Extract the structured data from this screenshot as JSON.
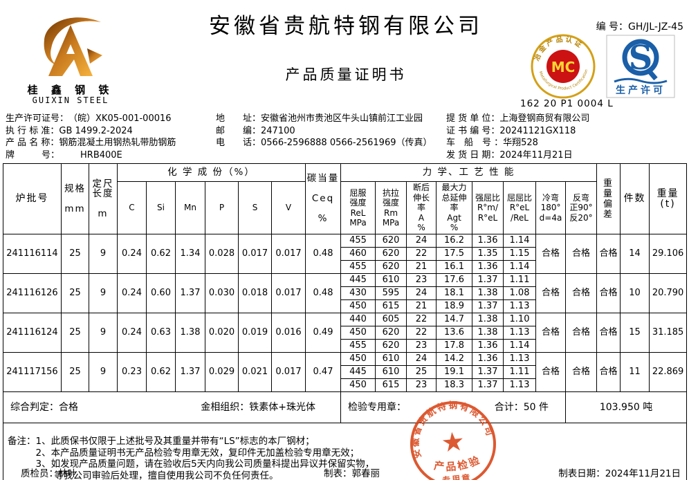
{
  "header": {
    "company": "安徽省贵航特钢有限公司",
    "doc_title": "产品质量证明书",
    "cert_no_label": "编 号：",
    "cert_no": "GH/JL-JZ-45",
    "mc_code": "162 20 P1 0004 L"
  },
  "logo": {
    "cn": "桂 鑫 钢 铁",
    "en": "GUIXIN STEEL"
  },
  "badges": {
    "mc_text": "MC",
    "mc_ring_top": "冶金产品认证",
    "mc_ring_bottom": "Metallurgical Product Certification",
    "qs_label": "生产许可"
  },
  "info": {
    "col1": [
      {
        "label": "生产许可证号：",
        "value": "（皖）XK05-001-00016"
      },
      {
        "label": "执 行 标 准：",
        "value": "GB 1499.2-2024"
      },
      {
        "label": "产 品 名 称：",
        "value": "钢筋混凝土用钢热轧带肋钢筋"
      },
      {
        "label": "牌　　　号：",
        "value": "HRB400E"
      }
    ],
    "col2": [
      {
        "label": "地　　址：",
        "value": "安徽省池州市贵池区牛头山镇前江工业园"
      },
      {
        "label": "邮　　编：",
        "value": "247100"
      },
      {
        "label": "电　　话：",
        "value": "0566-2596888  0566-2561969（传真）"
      }
    ],
    "col3": [
      {
        "label": "提 货 单 位：",
        "value": "上海登钢商贸有限公司"
      },
      {
        "label": "证 书 编 号：",
        "value": "20241121GX118"
      },
      {
        "label": "车　船　号 ：",
        "value": "华翔528"
      },
      {
        "label": "发 货 日 期：",
        "value": "2024年11月21日"
      }
    ]
  },
  "table": {
    "header": {
      "batch": "炉批号",
      "spec": "规格\n\nmm",
      "length": "定尺\n长度\n\nm",
      "chem_group": "化 学 成 份（%）",
      "chem_cols": [
        "C",
        "Si",
        "Mn",
        "P",
        "S",
        "V"
      ],
      "ceq": "碳当量\n\nCeq\n\n%",
      "mech_group": "力 学、工 艺 性 能",
      "mech_cols": [
        "屈服\n强度\nReL\nMPa",
        "抗拉\n强度\nRm\nMPa",
        "断后\n伸长\n率\nA\n%",
        "最大力\n总延伸\n率\nAgt\n%",
        "强屈比\nR°m/\nR°eL",
        "屈屈比\nR°eL\n/ReL",
        "冷弯\n180°\nd=4a",
        "反弯\n正90°\n反20°"
      ],
      "weight_dev": "重\n量\n偏\n差",
      "pieces": "件数",
      "weight": "重量\n(t)"
    },
    "batches": [
      {
        "batch_no": "241116114",
        "spec": "25",
        "length": "9",
        "chem": [
          "0.24",
          "0.62",
          "1.34",
          "0.028",
          "0.017",
          "0.017"
        ],
        "ceq": "0.48",
        "mech": [
          [
            "455",
            "620",
            "24",
            "16.2",
            "1.36",
            "1.14"
          ],
          [
            "460",
            "620",
            "22",
            "17.5",
            "1.35",
            "1.15"
          ],
          [
            "455",
            "620",
            "21",
            "16.1",
            "1.36",
            "1.14"
          ]
        ],
        "cold_bend": "合格",
        "reverse_bend": "合格",
        "weight_dev": "合格",
        "pieces": "14",
        "weight": "29.106"
      },
      {
        "batch_no": "241116126",
        "spec": "25",
        "length": "9",
        "chem": [
          "0.24",
          "0.60",
          "1.37",
          "0.030",
          "0.018",
          "0.017"
        ],
        "ceq": "0.48",
        "mech": [
          [
            "445",
            "610",
            "23",
            "17.6",
            "1.37",
            "1.11"
          ],
          [
            "430",
            "595",
            "24",
            "18.1",
            "1.38",
            "1.08"
          ],
          [
            "450",
            "615",
            "21",
            "18.9",
            "1.37",
            "1.13"
          ]
        ],
        "cold_bend": "合格",
        "reverse_bend": "合格",
        "weight_dev": "合格",
        "pieces": "10",
        "weight": "20.790"
      },
      {
        "batch_no": "241116124",
        "spec": "25",
        "length": "9",
        "chem": [
          "0.24",
          "0.63",
          "1.38",
          "0.020",
          "0.019",
          "0.016"
        ],
        "ceq": "0.49",
        "mech": [
          [
            "440",
            "605",
            "22",
            "14.7",
            "1.38",
            "1.10"
          ],
          [
            "450",
            "620",
            "22",
            "13.6",
            "1.38",
            "1.13"
          ],
          [
            "455",
            "620",
            "23",
            "17.8",
            "1.36",
            "1.14"
          ]
        ],
        "cold_bend": "合格",
        "reverse_bend": "合格",
        "weight_dev": "合格",
        "pieces": "15",
        "weight": "31.185"
      },
      {
        "batch_no": "241117156",
        "spec": "25",
        "length": "9",
        "chem": [
          "0.23",
          "0.62",
          "1.37",
          "0.029",
          "0.021",
          "0.017"
        ],
        "ceq": "0.47",
        "mech": [
          [
            "450",
            "610",
            "24",
            "14.2",
            "1.36",
            "1.13"
          ],
          [
            "445",
            "610",
            "25",
            "19.1",
            "1.37",
            "1.11"
          ],
          [
            "450",
            "615",
            "23",
            "18.3",
            "1.37",
            "1.13"
          ]
        ],
        "cold_bend": "合格",
        "reverse_bend": "合格",
        "weight_dev": "合格",
        "pieces": "11",
        "weight": "22.869"
      }
    ]
  },
  "summary": {
    "judge_label": "综合判定：",
    "judge_value": "合格",
    "structure_label": "金相组织：",
    "structure_value": "铁素体+珠光体",
    "stamp_label": "检验专用章：",
    "total_label": "合计：",
    "total_pieces": "50 件",
    "total_weight": "103.950  吨"
  },
  "notes": {
    "label": "备注：",
    "lines": [
      "1、此质保书仅限于上述批号及其重量并带有“LS”标志的本厂钢材；",
      "2、本产品质量证明书无产品检验专用章无效，复印件无加盖检验专用章无效；",
      "3、如发现产品质量问题，请在验收后5天内向我公司质量科提出异议并保留实物，",
      "等我公司审验后处理，擅自使用我公司不负任何责任。"
    ]
  },
  "footer": {
    "qc_label": "质检员：",
    "qc_value": "林叶",
    "maker_label": "制表：",
    "maker_value": "郭春丽",
    "date_label": "制表日期：",
    "date_value": "2024年11月21日"
  },
  "stamp": {
    "company": "安徽省贵航特钢有限公司",
    "line1": "产品检验",
    "line2": "专用章"
  },
  "colors": {
    "stamp_red": "#d84315",
    "mc_red": "#cc1212",
    "mc_gold": "#d4a017",
    "qs_blue": "#1a5fa8",
    "logo_gold": "#c8791e"
  }
}
